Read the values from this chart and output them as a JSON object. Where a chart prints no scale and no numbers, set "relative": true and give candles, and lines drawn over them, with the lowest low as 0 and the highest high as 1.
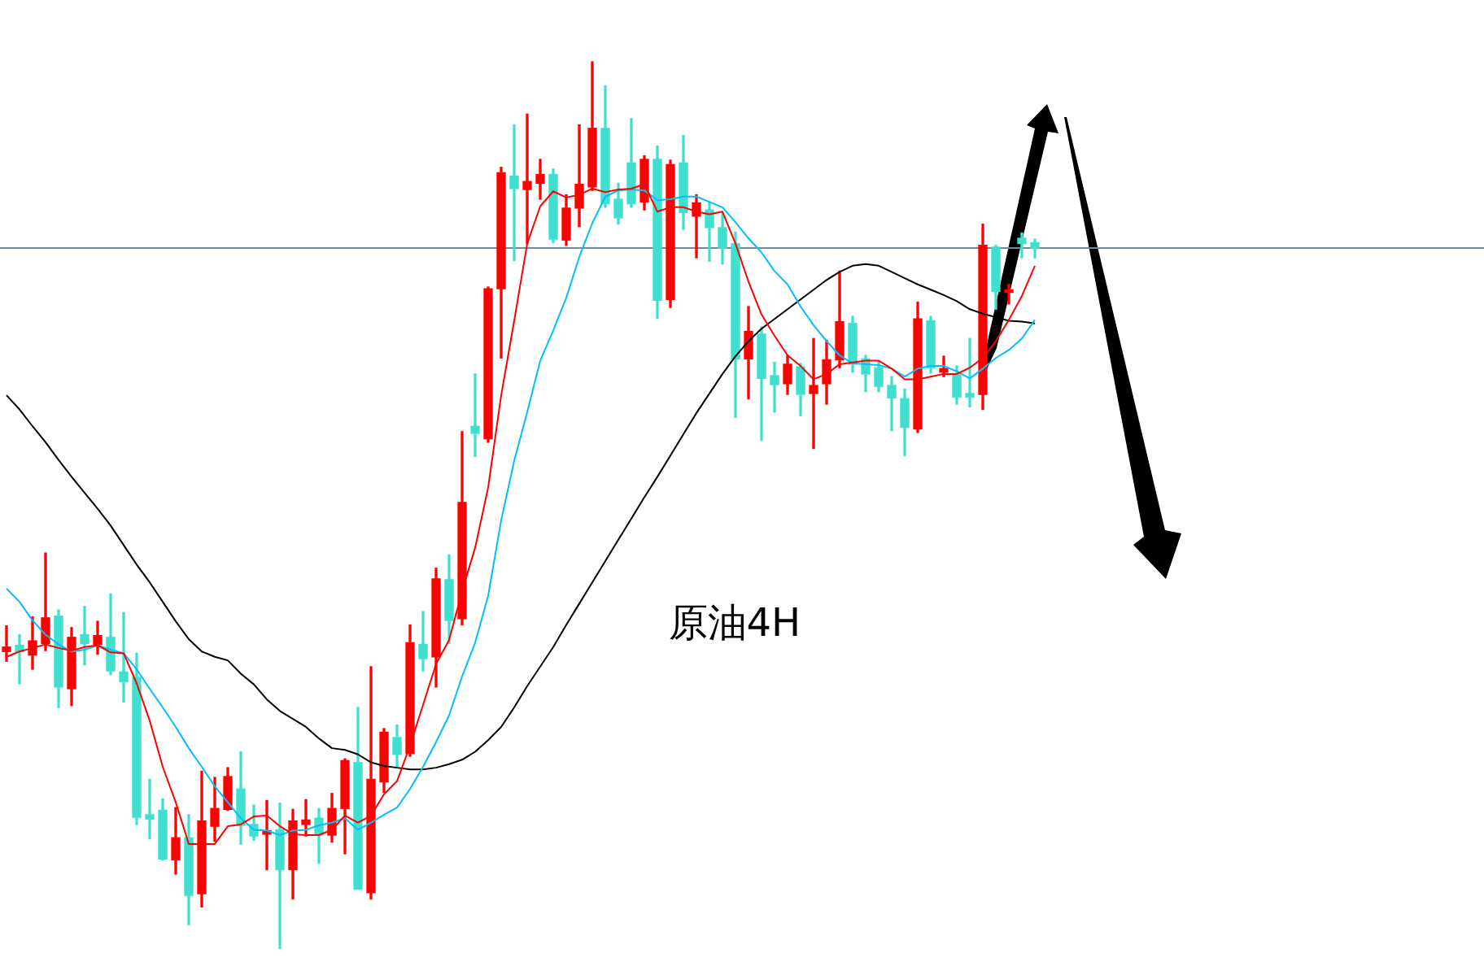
{
  "chart_data": {
    "type": "candlestick",
    "relative": true,
    "annotations": [
      "原油4H"
    ],
    "categories": [
      null,
      null,
      null,
      null,
      null,
      null,
      null,
      null,
      null,
      null,
      null,
      null,
      null,
      null,
      null,
      null,
      null,
      null,
      null,
      null,
      null,
      null,
      null,
      null,
      null,
      null,
      null,
      null,
      null,
      null,
      null,
      null,
      null,
      null,
      null,
      null,
      null,
      null,
      null,
      null,
      null,
      null,
      null,
      null,
      null,
      null,
      null,
      null,
      null,
      null,
      null,
      null,
      null,
      null,
      null,
      null,
      null,
      null,
      null,
      null,
      null,
      null,
      null,
      null,
      null,
      null,
      null,
      null,
      null,
      null,
      null,
      null,
      null,
      null,
      null,
      null,
      null,
      null,
      null,
      null
    ],
    "ohlc": [
      [
        0.335,
        0.364,
        0.324,
        0.34
      ],
      [
        0.342,
        0.354,
        0.299,
        0.335
      ],
      [
        0.331,
        0.374,
        0.315,
        0.347
      ],
      [
        0.344,
        0.446,
        0.336,
        0.373
      ],
      [
        0.375,
        0.382,
        0.272,
        0.295
      ],
      [
        0.293,
        0.362,
        0.274,
        0.351
      ],
      [
        0.354,
        0.386,
        0.32,
        0.344
      ],
      [
        0.343,
        0.369,
        0.332,
        0.353
      ],
      [
        0.351,
        0.4,
        0.309,
        0.313
      ],
      [
        0.312,
        0.379,
        0.278,
        0.301
      ],
      [
        0.306,
        0.333,
        0.14,
        0.148
      ],
      [
        0.151,
        0.191,
        0.124,
        0.146
      ],
      [
        0.156,
        0.169,
        0.1,
        0.101
      ],
      [
        0.1,
        0.159,
        0.084,
        0.125
      ],
      [
        0.125,
        0.151,
        0.027,
        0.06
      ],
      [
        0.062,
        0.2,
        0.047,
        0.144
      ],
      [
        0.138,
        0.193,
        0.121,
        0.158
      ],
      [
        0.157,
        0.204,
        0.156,
        0.194
      ],
      [
        0.18,
        0.222,
        0.118,
        0.139
      ],
      [
        0.14,
        0.162,
        0.122,
        0.127
      ],
      [
        0.129,
        0.167,
        0.089,
        0.133
      ],
      [
        0.134,
        0.164,
        0.0,
        0.089
      ],
      [
        0.089,
        0.157,
        0.056,
        0.144
      ],
      [
        0.14,
        0.168,
        0.127,
        0.145
      ],
      [
        0.147,
        0.158,
        0.096,
        0.128
      ],
      [
        0.128,
        0.175,
        0.12,
        0.158
      ],
      [
        0.158,
        0.214,
        0.107,
        0.212
      ],
      [
        0.21,
        0.272,
        0.067,
        0.067
      ],
      [
        0.063,
        0.318,
        0.056,
        0.191
      ],
      [
        0.188,
        0.248,
        0.176,
        0.244
      ],
      [
        0.238,
        0.252,
        0.205,
        0.219
      ],
      [
        0.22,
        0.365,
        0.217,
        0.345
      ],
      [
        0.343,
        0.38,
        0.313,
        0.327
      ],
      [
        0.329,
        0.429,
        0.295,
        0.417
      ],
      [
        0.416,
        0.444,
        0.344,
        0.37
      ],
      [
        0.372,
        0.583,
        0.365,
        0.503
      ],
      [
        0.589,
        0.648,
        0.555,
        0.581
      ],
      [
        0.575,
        0.746,
        0.571,
        0.744
      ],
      [
        0.744,
        0.881,
        0.666,
        0.875
      ],
      [
        0.871,
        0.929,
        0.776,
        0.857
      ],
      [
        0.856,
        0.941,
        0.795,
        0.865
      ],
      [
        0.863,
        0.89,
        0.845,
        0.873
      ],
      [
        0.873,
        0.879,
        0.796,
        0.8
      ],
      [
        0.799,
        0.85,
        0.793,
        0.835
      ],
      [
        0.835,
        0.929,
        0.814,
        0.862
      ],
      [
        0.859,
        1,
        0.855,
        0.925
      ],
      [
        0.925,
        0.973,
        0.836,
        0.84
      ],
      [
        0.845,
        0.863,
        0.817,
        0.824
      ],
      [
        0.886,
        0.936,
        0.836,
        0.84
      ],
      [
        0.842,
        0.894,
        0.833,
        0.89
      ],
      [
        0.89,
        0.905,
        0.711,
        0.731
      ],
      [
        0.732,
        0.889,
        0.723,
        0.884
      ],
      [
        0.886,
        0.917,
        0.811,
        0.83
      ],
      [
        0.826,
        0.85,
        0.779,
        0.841
      ],
      [
        0.833,
        0.842,
        0.775,
        0.813
      ],
      [
        0.813,
        0.829,
        0.772,
        0.79
      ],
      [
        0.795,
        0.808,
        0.599,
        0.665
      ],
      [
        0.665,
        0.724,
        0.62,
        0.696
      ],
      [
        0.693,
        0.701,
        0.573,
        0.643
      ],
      [
        0.646,
        0.661,
        0.605,
        0.636
      ],
      [
        0.637,
        0.669,
        0.625,
        0.659
      ],
      [
        0.656,
        0.66,
        0.601,
        0.625
      ],
      [
        0.626,
        0.688,
        0.564,
        0.635
      ],
      [
        0.637,
        0.686,
        0.614,
        0.664
      ],
      [
        0.664,
        0.764,
        0.655,
        0.707
      ],
      [
        0.705,
        0.713,
        0.65,
        0.659
      ],
      [
        0.665,
        0.669,
        0.628,
        0.648
      ],
      [
        0.655,
        0.663,
        0.628,
        0.634
      ],
      [
        0.635,
        0.645,
        0.584,
        0.621
      ],
      [
        0.62,
        0.631,
        0.556,
        0.588
      ],
      [
        0.586,
        0.729,
        0.582,
        0.71
      ],
      [
        0.708,
        0.713,
        0.649,
        0.655
      ],
      [
        0.65,
        0.668,
        0.645,
        0.654
      ],
      [
        0.647,
        0.657,
        0.614,
        0.622
      ],
      [
        0.626,
        0.688,
        0.611,
        0.622
      ],
      [
        0.625,
        0.817,
        0.608,
        0.793
      ],
      [
        0.791,
        0.793,
        0.721,
        0.741
      ],
      [
        0.74,
        0.749,
        0.727,
        0.743
      ],
      [
        0.801,
        0.807,
        0.779,
        0.795
      ],
      [
        0.796,
        0.8,
        0.779,
        0.79
      ]
    ],
    "colors": [
      "#ff0000",
      "#40e0d0",
      "#ff0000",
      "#ff0000",
      "#40e0d0",
      "#ff0000",
      "#40e0d0",
      "#ff0000",
      "#40e0d0",
      "#40e0d0",
      "#40e0d0",
      "#40e0d0",
      "#40e0d0",
      "#ff0000",
      "#40e0d0",
      "#ff0000",
      "#ff0000",
      "#ff0000",
      "#40e0d0",
      "#40e0d0",
      "#ff0000",
      "#40e0d0",
      "#ff0000",
      "#ff0000",
      "#40e0d0",
      "#ff0000",
      "#ff0000",
      "#40e0d0",
      "#ff0000",
      "#ff0000",
      "#40e0d0",
      "#ff0000",
      "#40e0d0",
      "#ff0000",
      "#40e0d0",
      "#ff0000",
      "#40e0d0",
      "#ff0000",
      "#ff0000",
      "#40e0d0",
      "#ff0000",
      "#ff0000",
      "#40e0d0",
      "#ff0000",
      "#ff0000",
      "#ff0000",
      "#40e0d0",
      "#40e0d0",
      "#40e0d0",
      "#ff0000",
      "#40e0d0",
      "#ff0000",
      "#40e0d0",
      "#ff0000",
      "#40e0d0",
      "#40e0d0",
      "#40e0d0",
      "#ff0000",
      "#40e0d0",
      "#40e0d0",
      "#ff0000",
      "#40e0d0",
      "#ff0000",
      "#ff0000",
      "#ff0000",
      "#40e0d0",
      "#40e0d0",
      "#40e0d0",
      "#40e0d0",
      "#40e0d0",
      "#ff0000",
      "#40e0d0",
      "#ff0000",
      "#40e0d0",
      "#40e0d0",
      "#ff0000",
      "#40e0d0",
      "#ff0000",
      "#40e0d0",
      "#40e0d0"
    ],
    "series": [
      {
        "type": "line",
        "color": "#ff0000",
        "values": [
          0.329,
          0.335,
          0.339,
          0.343,
          0.339,
          0.336,
          0.34,
          0.342,
          0.334,
          0.333,
          0.299,
          0.257,
          0.205,
          0.165,
          0.118,
          0.118,
          0.118,
          0.138,
          0.14,
          0.149,
          0.15,
          0.138,
          0.129,
          0.128,
          0.128,
          0.134,
          0.15,
          0.142,
          0.15,
          0.174,
          0.189,
          0.229,
          0.275,
          0.321,
          0.348,
          0.403,
          0.452,
          0.52,
          0.624,
          0.708,
          0.795,
          0.837,
          0.854,
          0.847,
          0.85,
          0.857,
          0.853,
          0.856,
          0.857,
          0.862,
          0.831,
          0.836,
          0.836,
          0.831,
          0.828,
          0.831,
          0.795,
          0.752,
          0.715,
          0.691,
          0.669,
          0.657,
          0.642,
          0.648,
          0.659,
          0.661,
          0.663,
          0.663,
          0.654,
          0.642,
          0.642,
          0.645,
          0.648,
          0.648,
          0.655,
          0.666,
          0.685,
          0.709,
          0.736,
          0.77
        ]
      },
      {
        "type": "line",
        "color": "#00bfff",
        "values": [
          0.406,
          0.391,
          0.37,
          0.354,
          0.343,
          0.335,
          0.337,
          0.342,
          0.337,
          0.333,
          0.315,
          0.293,
          0.272,
          0.25,
          0.226,
          0.205,
          0.183,
          0.165,
          0.147,
          0.134,
          0.133,
          0.128,
          0.133,
          0.134,
          0.139,
          0.142,
          0.147,
          0.134,
          0.142,
          0.151,
          0.159,
          0.18,
          0.205,
          0.233,
          0.263,
          0.307,
          0.345,
          0.398,
          0.483,
          0.55,
          0.605,
          0.663,
          0.697,
          0.734,
          0.78,
          0.818,
          0.848,
          0.855,
          0.856,
          0.855,
          0.844,
          0.845,
          0.848,
          0.848,
          0.842,
          0.836,
          0.819,
          0.801,
          0.785,
          0.764,
          0.749,
          0.724,
          0.703,
          0.685,
          0.669,
          0.66,
          0.659,
          0.658,
          0.654,
          0.645,
          0.654,
          0.657,
          0.657,
          0.651,
          0.643,
          0.654,
          0.666,
          0.675,
          0.688,
          0.709
        ]
      },
      {
        "type": "line",
        "color": "#000000",
        "values": [
          0.624,
          0.608,
          0.589,
          0.571,
          0.551,
          0.532,
          0.514,
          0.496,
          0.477,
          0.455,
          0.433,
          0.413,
          0.391,
          0.369,
          0.349,
          0.335,
          0.329,
          0.325,
          0.31,
          0.298,
          0.281,
          0.268,
          0.259,
          0.25,
          0.237,
          0.226,
          0.224,
          0.219,
          0.21,
          0.206,
          0.204,
          0.202,
          0.202,
          0.204,
          0.208,
          0.213,
          0.222,
          0.235,
          0.25,
          0.272,
          0.296,
          0.318,
          0.34,
          0.365,
          0.389,
          0.413,
          0.437,
          0.461,
          0.485,
          0.509,
          0.532,
          0.556,
          0.58,
          0.604,
          0.626,
          0.648,
          0.668,
          0.685,
          0.699,
          0.71,
          0.721,
          0.732,
          0.743,
          0.754,
          0.763,
          0.77,
          0.772,
          0.77,
          0.763,
          0.756,
          0.749,
          0.743,
          0.737,
          0.73,
          0.721,
          0.716,
          0.712,
          0.708,
          0.707,
          0.705
        ]
      }
    ],
    "ref_lines": [
      {
        "axis": "y",
        "value": 0.791,
        "color": "#778899"
      }
    ]
  }
}
